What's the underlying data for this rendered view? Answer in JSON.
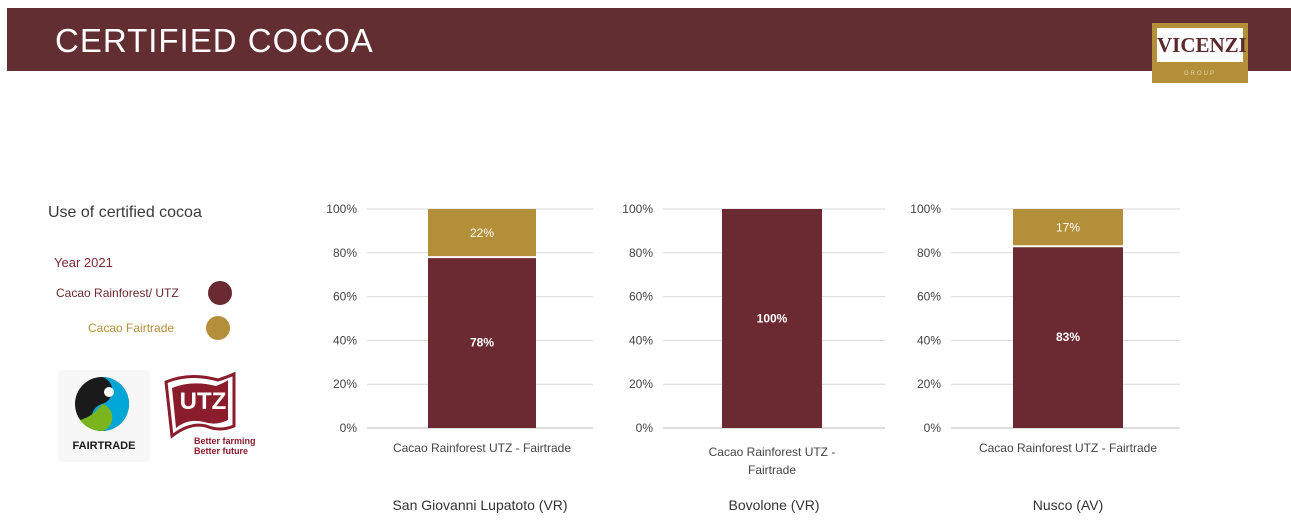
{
  "header": {
    "title": "CERTIFIED COCOA",
    "logo_text": "VICENZI",
    "logo_sub": "GROUP"
  },
  "legend": {
    "title": "Use of certified cocoa",
    "year": "Year 2021",
    "items": [
      {
        "label": "Cacao Rainforest/ UTZ",
        "color": "#6b2a31"
      },
      {
        "label": "Cacao Fairtrade",
        "color": "#b38f3a"
      }
    ]
  },
  "badges": [
    {
      "name": "fairtrade-logo",
      "text": "FAIRTRADE"
    },
    {
      "name": "utz-logo",
      "text": "UTZ",
      "tagline": "Better farming Better future"
    }
  ],
  "chart_data": [
    {
      "type": "bar",
      "stacked": true,
      "categories": [
        "Cacao Rainforest UTZ - Fairtrade"
      ],
      "series": [
        {
          "name": "Cacao Rainforest/ UTZ",
          "values": [
            78
          ],
          "color": "#6b2a31",
          "label": "78%"
        },
        {
          "name": "Cacao Fairtrade",
          "values": [
            22
          ],
          "color": "#b38f3a",
          "label": "22%"
        }
      ],
      "ylim": [
        0,
        100
      ],
      "yticks": [
        "0%",
        "20%",
        "40%",
        "60%",
        "80%",
        "100%"
      ],
      "grid": true,
      "caption": "San Giovanni Lupatoto (VR)"
    },
    {
      "type": "bar",
      "stacked": true,
      "categories": [
        "Cacao Rainforest UTZ - Fairtrade"
      ],
      "series": [
        {
          "name": "Cacao Rainforest/ UTZ",
          "values": [
            100
          ],
          "color": "#6b2a31",
          "label": "100%"
        }
      ],
      "ylim": [
        0,
        100
      ],
      "yticks": [
        "0%",
        "20%",
        "40%",
        "60%",
        "80%",
        "100%"
      ],
      "grid": true,
      "caption": "Bovolone (VR)"
    },
    {
      "type": "bar",
      "stacked": true,
      "categories": [
        "Cacao Rainforest UTZ - Fairtrade"
      ],
      "series": [
        {
          "name": "Cacao Rainforest/ UTZ",
          "values": [
            83
          ],
          "color": "#6b2a31",
          "label": "83%"
        },
        {
          "name": "Cacao Fairtrade",
          "values": [
            17
          ],
          "color": "#b38f3a",
          "label": "17%"
        }
      ],
      "ylim": [
        0,
        100
      ],
      "yticks": [
        "0%",
        "20%",
        "40%",
        "60%",
        "80%",
        "100%"
      ],
      "grid": true,
      "caption": "Nusco (AV)"
    }
  ]
}
